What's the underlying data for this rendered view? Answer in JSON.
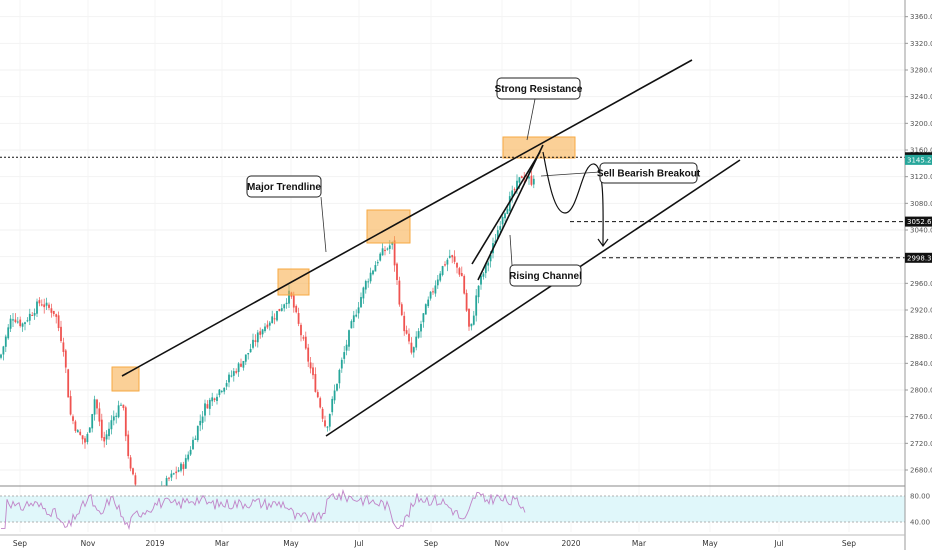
{
  "chart_data": {
    "type": "candlestick",
    "y_axis": {
      "ticks": [
        2680.0,
        2720.0,
        2760.0,
        2800.0,
        2840.0,
        2880.0,
        2920.0,
        2960.0,
        3000.0,
        3040.0,
        3080.0,
        3120.0,
        3160.0,
        3200.0,
        3240.0,
        3280.0,
        3320.0,
        3360.0
      ],
      "tick_labels": [
        "2680.0",
        "2720.0",
        "2760.0",
        "2800.0",
        "2840.0",
        "2880.0",
        "2920.0",
        "2960.0",
        "3000.0",
        "3040.0",
        "3080.0",
        "3120.0",
        "3160.0",
        "3200.0",
        "3240.0",
        "3280.0",
        "3320.0",
        "3360.0"
      ],
      "range": [
        2660,
        3370
      ]
    },
    "x_axis": {
      "labels": [
        "Sep",
        "Nov",
        "2019",
        "Mar",
        "May",
        "Jul",
        "Sep",
        "Nov",
        "2020",
        "Mar",
        "May",
        "Jul",
        "Sep"
      ]
    },
    "price_tags": [
      {
        "value": 3149.1,
        "label": "3149.1",
        "style": "dark"
      },
      {
        "value": 3145.2,
        "label": "3145.2",
        "style": "green"
      },
      {
        "value": 3052.6,
        "label": "3052.6",
        "style": "dark"
      },
      {
        "value": 2998.3,
        "label": "2998.3",
        "style": "dark"
      }
    ],
    "rsi": {
      "levels": [
        80.0,
        40.0
      ],
      "level_labels": [
        "80.00",
        "40.00"
      ]
    },
    "annotations": [
      {
        "text": "Strong Resistance"
      },
      {
        "text": "Major Trendline"
      },
      {
        "text": "Sell Bearish Breakout"
      },
      {
        "text": "Rising Channel"
      }
    ],
    "colors": {
      "up": "#26a69a",
      "down": "#ef5350",
      "highlight": "#f7a942",
      "rsi_band": "#e0f7fa",
      "rsi_line": "#c084c8"
    }
  }
}
